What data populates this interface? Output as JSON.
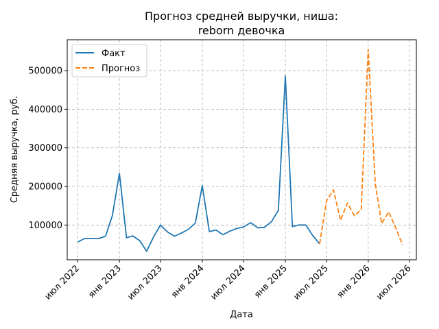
{
  "chart_data": {
    "type": "line",
    "title_line1": "Прогноз средней выручки, ниша:",
    "title_line2": "reborn девочка",
    "xlabel": "Дата",
    "ylabel": "Средняя выручка, руб.",
    "ylim": [
      10000,
      580000
    ],
    "yticks": [
      100000,
      200000,
      300000,
      400000,
      500000
    ],
    "xlim": [
      "2022-05-16",
      "2026-08-01"
    ],
    "xticks": [
      {
        "date": "2022-07-01",
        "label": "июл 2022"
      },
      {
        "date": "2023-01-01",
        "label": "янв 2023"
      },
      {
        "date": "2023-07-01",
        "label": "июл 2023"
      },
      {
        "date": "2024-01-01",
        "label": "янв 2024"
      },
      {
        "date": "2024-07-01",
        "label": "июл 2024"
      },
      {
        "date": "2025-01-01",
        "label": "янв 2025"
      },
      {
        "date": "2025-07-01",
        "label": "июл 2025"
      },
      {
        "date": "2026-01-01",
        "label": "янв 2026"
      },
      {
        "date": "2026-07-01",
        "label": "июл 2026"
      }
    ],
    "grid": true,
    "legend_position": "top-left",
    "series": [
      {
        "name": "Факт",
        "color": "#1f77b4",
        "style": "solid",
        "x": [
          "2022-07-01",
          "2022-08-01",
          "2022-09-01",
          "2022-10-01",
          "2022-11-01",
          "2022-12-01",
          "2023-01-01",
          "2023-02-01",
          "2023-03-01",
          "2023-04-01",
          "2023-05-01",
          "2023-06-01",
          "2023-07-01",
          "2023-08-01",
          "2023-09-01",
          "2023-10-01",
          "2023-11-01",
          "2023-12-01",
          "2024-01-01",
          "2024-02-01",
          "2024-03-01",
          "2024-04-01",
          "2024-05-01",
          "2024-06-01",
          "2024-07-01",
          "2024-08-01",
          "2024-09-01",
          "2024-10-01",
          "2024-11-01",
          "2024-12-01",
          "2025-01-01",
          "2025-02-01",
          "2025-03-01",
          "2025-04-01",
          "2025-05-01",
          "2025-06-01"
        ],
        "values": [
          56000,
          65000,
          65000,
          65000,
          71000,
          125000,
          234000,
          67000,
          72000,
          59000,
          32000,
          70000,
          100000,
          82000,
          71000,
          79000,
          89000,
          105000,
          202000,
          83000,
          87000,
          75000,
          84000,
          91000,
          95000,
          106000,
          93000,
          94000,
          109000,
          138000,
          486000,
          96000,
          100000,
          100000,
          73000,
          51000
        ]
      },
      {
        "name": "Прогноз",
        "color": "#ff7f0e",
        "style": "dashed",
        "x": [
          "2025-06-01",
          "2025-07-01",
          "2025-08-01",
          "2025-09-01",
          "2025-10-01",
          "2025-11-01",
          "2025-12-01",
          "2026-01-01",
          "2026-02-01",
          "2026-03-01",
          "2026-04-01",
          "2026-05-01",
          "2026-06-01"
        ],
        "values": [
          51000,
          162000,
          191000,
          112000,
          157000,
          124000,
          140000,
          555000,
          207000,
          104000,
          134000,
          94000,
          49000
        ]
      }
    ]
  }
}
